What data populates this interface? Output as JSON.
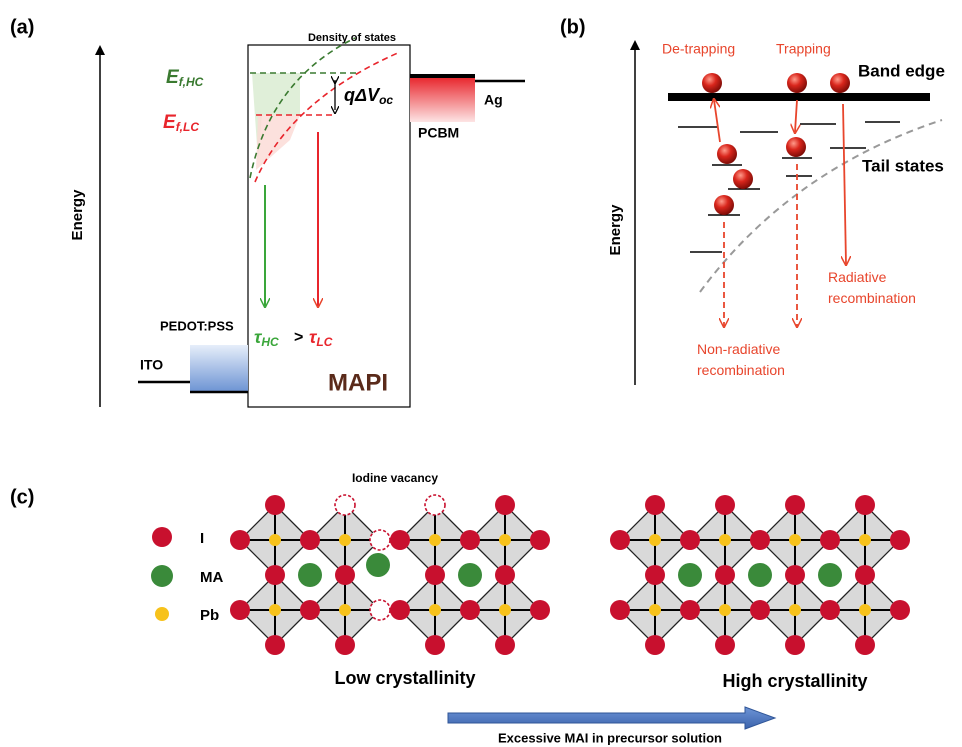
{
  "panel_a": {
    "label": "(a)",
    "axis_label": "Energy",
    "dos_label": "Density of states",
    "ef_hc": {
      "main": "E",
      "sub": "f,HC"
    },
    "ef_lc": {
      "main": "E",
      "sub": "f,LC"
    },
    "delta_voc": {
      "main": "qΔV",
      "sub": "oc"
    },
    "ag": "Ag",
    "pcbm": "PCBM",
    "pedot": "PEDOT:PSS",
    "ito": "ITO",
    "tau_hc": {
      "main": "τ",
      "sub": "HC"
    },
    "compare": ">",
    "tau_lc": {
      "main": "τ",
      "sub": "LC"
    },
    "mapi": "MAPI"
  },
  "panel_b": {
    "label": "(b)",
    "axis_label": "Energy",
    "detrapping": "De-trapping",
    "trapping": "Trapping",
    "band_edge": "Band edge",
    "tail_states": "Tail states",
    "radiative": {
      "lines": [
        "Radiative",
        "recombination"
      ]
    },
    "nonradiative": {
      "lines": [
        "Non-radiative",
        "recombination"
      ]
    }
  },
  "panel_c": {
    "label": "(c)",
    "vacancy": "Iodine vacancy",
    "legend": [
      "I",
      "MA",
      "Pb"
    ],
    "low": "Low crystallinity",
    "high": "High crystallinity",
    "arrow_label": "Excessive MAI in precursor solution"
  }
}
